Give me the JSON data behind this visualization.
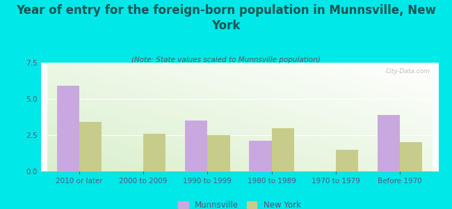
{
  "title": "Year of entry for the foreign-born population in Munnsville, New\nYork",
  "subtitle": "(Note: State values scaled to Munnsville population)",
  "categories": [
    "2010 or later",
    "2000 to 2009",
    "1990 to 1999",
    "1980 to 1989",
    "1970 to 1979",
    "Before 1970"
  ],
  "munnsville_values": [
    5.9,
    0,
    3.5,
    2.1,
    0,
    3.9
  ],
  "newyork_values": [
    3.4,
    2.6,
    2.5,
    3.0,
    1.5,
    2.0
  ],
  "munnsville_color": "#c9a8e0",
  "newyork_color": "#c8cc8a",
  "background_color": "#00e8e8",
  "ylim": [
    0,
    7.5
  ],
  "yticks": [
    0,
    2.5,
    5,
    7.5
  ],
  "bar_width": 0.35,
  "legend_munnsville": "Munnsville",
  "legend_newyork": "New York",
  "title_fontsize": 12,
  "subtitle_fontsize": 7.5,
  "tick_fontsize": 7.5,
  "legend_fontsize": 8.5,
  "title_color": "#1a5555",
  "subtitle_color": "#555555",
  "tick_color": "#555577"
}
